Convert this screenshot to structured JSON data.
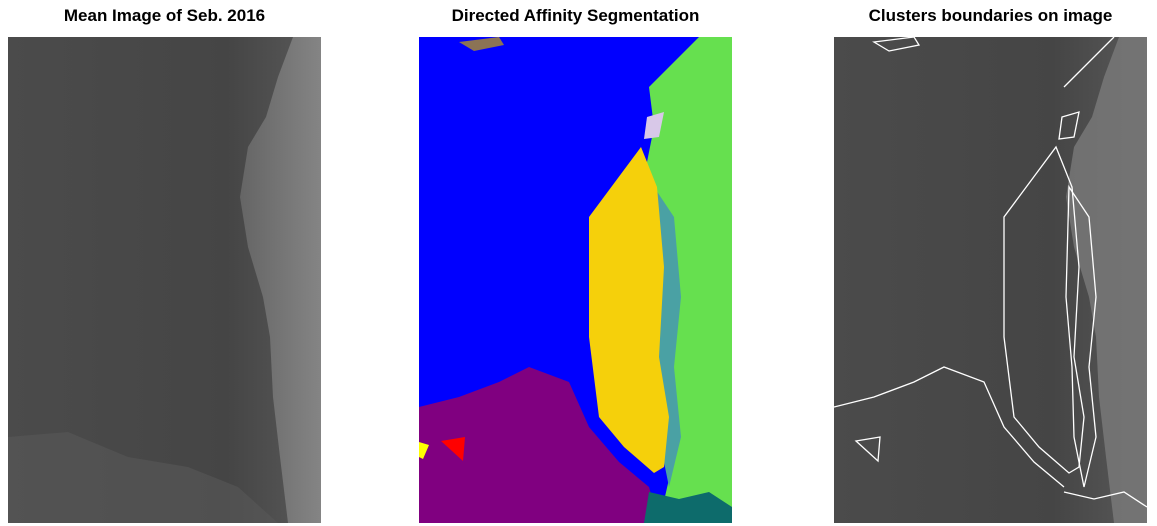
{
  "panels": [
    {
      "title": "Mean Image of Seb. 2016"
    },
    {
      "title": "Directed Affinity Segmentation"
    },
    {
      "title": "Clusters boundaries on image"
    }
  ],
  "colors": {
    "gray_dark": "#4a4a4a",
    "gray_light": "#8a8a8a",
    "seg_blue": "#0000ff",
    "seg_purple": "#800080",
    "seg_yellow": "#f5d00b",
    "seg_green": "#66e04f",
    "seg_teal": "#4aa1a4",
    "seg_red": "#ff0000",
    "boundary": "#ffffff"
  }
}
